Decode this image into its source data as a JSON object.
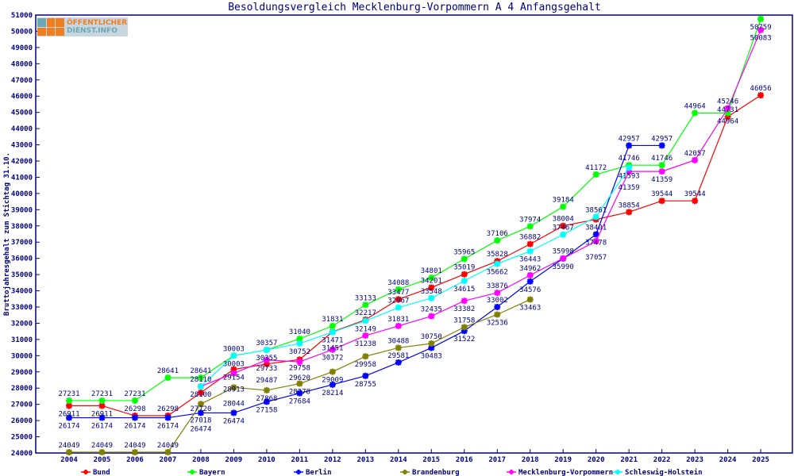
{
  "logo": {
    "line1": "ÖFFENTLICHER",
    "line2": "DIENST.INFO"
  },
  "chart_data": {
    "type": "line",
    "title": "Besoldungsvergleich Mecklenburg-Vorpommern A 4 Anfangsgehalt",
    "xlabel": "",
    "ylabel": "Bruttojahresgehalt zum Stichtag 31.10.",
    "ylim": [
      24000,
      51000
    ],
    "ytick_step": 1000,
    "grid": false,
    "legend": "bottom",
    "x": [
      2004,
      2005,
      2006,
      2007,
      2008,
      2009,
      2010,
      2011,
      2012,
      2013,
      2014,
      2015,
      2016,
      2017,
      2018,
      2019,
      2020,
      2021,
      2022,
      2023,
      2024,
      2025
    ],
    "series": [
      {
        "name": "Bund",
        "color": "#ff0000",
        "values": [
          26911,
          26911,
          26298,
          26298,
          27720,
          29154,
          29487,
          29758,
          31471,
          32217,
          33477,
          34201,
          35019,
          35828,
          36882,
          38004,
          38401,
          38854,
          39544,
          39544,
          44731,
          46056
        ]
      },
      {
        "name": "Bayern",
        "color": "#00ff00",
        "values": [
          27231,
          27231,
          27231,
          28641,
          28641,
          30003,
          30357,
          31040,
          31831,
          33133,
          34088,
          34801,
          35965,
          37106,
          37974,
          39184,
          41172,
          41746,
          41746,
          44964,
          44964,
          50759
        ]
      },
      {
        "name": "Berlin",
        "color": "#0000ff",
        "values": [
          26174,
          26174,
          26174,
          26174,
          26474,
          26474,
          27158,
          27684,
          28214,
          28755,
          29581,
          30483,
          31522,
          33002,
          34576,
          35990,
          37478,
          42957,
          42957,
          null,
          null,
          null
        ]
      },
      {
        "name": "Brandenburg",
        "color": "#808000",
        "values": [
          24049,
          24049,
          24049,
          24049,
          27018,
          28044,
          27868,
          28278,
          29009,
          29958,
          30488,
          30750,
          31758,
          32536,
          33463,
          null,
          null,
          null,
          null,
          null,
          null,
          null
        ]
      },
      {
        "name": "Mecklenburg-Vorpommern",
        "color": "#ff00ff",
        "values": [
          null,
          null,
          null,
          null,
          28110,
          28913,
          29733,
          29620,
          30372,
          31238,
          31831,
          32435,
          33382,
          33876,
          34962,
          35998,
          37057,
          41359,
          41359,
          42057,
          45246,
          50083
        ]
      },
      {
        "name": "Schleswig-Holstein",
        "color": "#00ffff",
        "values": [
          null,
          null,
          null,
          null,
          28100,
          30003,
          30355,
          30752,
          31451,
          32149,
          32967,
          33548,
          34615,
          35662,
          36443,
          37467,
          38561,
          41593,
          null,
          null,
          null,
          null
        ]
      }
    ]
  }
}
